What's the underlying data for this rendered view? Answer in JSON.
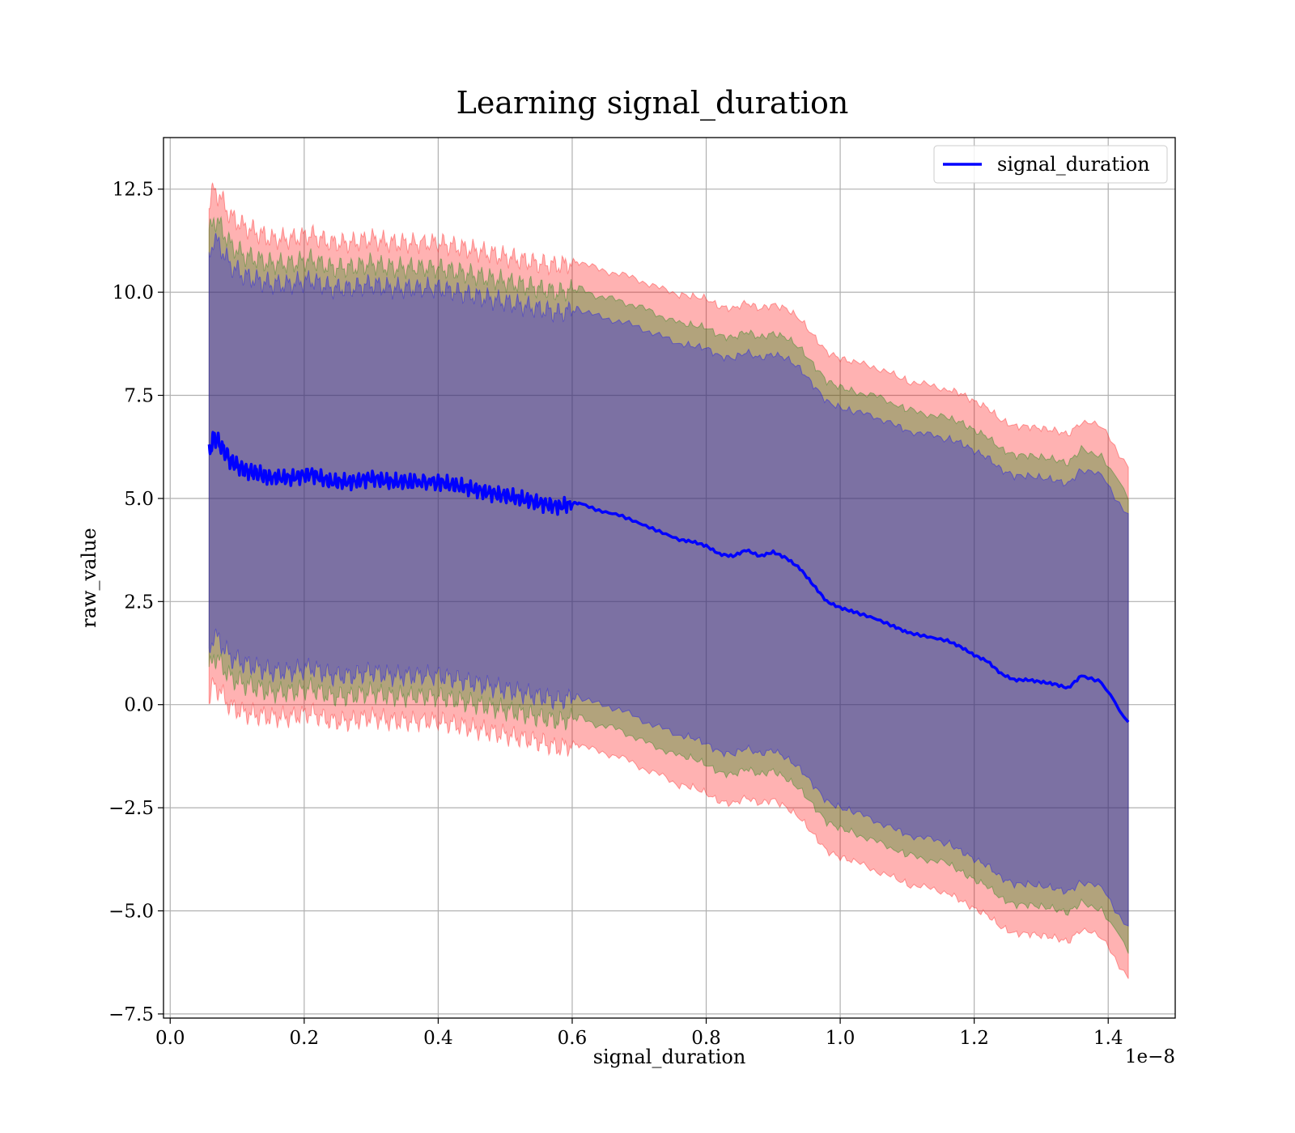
{
  "chart_data": {
    "type": "line",
    "title": "Learning signal_duration",
    "xlabel": "signal_duration",
    "ylabel": "raw_value",
    "x_offset_text": "1e−8",
    "xlim": [
      -0.01,
      1.5
    ],
    "ylim": [
      -7.6,
      13.75
    ],
    "x_ticks": [
      0.0,
      0.2,
      0.4,
      0.6,
      0.8,
      1.0,
      1.2,
      1.4
    ],
    "x_tick_labels": [
      "0.0",
      "0.2",
      "0.4",
      "0.6",
      "0.8",
      "1.0",
      "1.2",
      "1.4"
    ],
    "y_ticks": [
      -7.5,
      -5.0,
      -2.5,
      0.0,
      2.5,
      5.0,
      7.5,
      10.0,
      12.5
    ],
    "y_tick_labels": [
      "−7.5",
      "−5.0",
      "−2.5",
      "0.0",
      "2.5",
      "5.0",
      "7.5",
      "10.0",
      "12.5"
    ],
    "grid": true,
    "legend_position": "top-right",
    "series": [
      {
        "name": "signal_duration",
        "color": "#0000ff",
        "x": [
          0.058,
          0.065,
          0.075,
          0.09,
          0.11,
          0.13,
          0.15,
          0.18,
          0.21,
          0.24,
          0.27,
          0.3,
          0.33,
          0.36,
          0.4,
          0.43,
          0.46,
          0.49,
          0.52,
          0.55,
          0.58,
          0.61,
          0.64,
          0.67,
          0.7,
          0.73,
          0.76,
          0.78,
          0.8,
          0.82,
          0.84,
          0.86,
          0.88,
          0.9,
          0.92,
          0.94,
          0.96,
          0.98,
          1.0,
          1.02,
          1.05,
          1.08,
          1.1,
          1.13,
          1.16,
          1.18,
          1.2,
          1.22,
          1.24,
          1.26,
          1.28,
          1.3,
          1.32,
          1.34,
          1.36,
          1.39,
          1.43
        ],
        "y": [
          6.1,
          6.5,
          6.3,
          5.9,
          5.7,
          5.6,
          5.5,
          5.5,
          5.6,
          5.4,
          5.4,
          5.5,
          5.4,
          5.4,
          5.4,
          5.3,
          5.2,
          5.1,
          5.0,
          4.9,
          4.8,
          4.9,
          4.7,
          4.6,
          4.4,
          4.2,
          4.0,
          3.95,
          3.85,
          3.65,
          3.6,
          3.75,
          3.6,
          3.7,
          3.55,
          3.3,
          2.9,
          2.5,
          2.35,
          2.25,
          2.1,
          1.9,
          1.75,
          1.65,
          1.55,
          1.4,
          1.2,
          1.05,
          0.75,
          0.6,
          0.6,
          0.55,
          0.5,
          0.4,
          0.7,
          0.55,
          -0.45
        ]
      }
    ],
    "bands": [
      {
        "name": "outer",
        "color": "#ff0000",
        "opacity": 0.3,
        "width": [
          6.0,
          6.0,
          6.0,
          5.95,
          5.9,
          5.85,
          5.8,
          5.8,
          5.8,
          5.8,
          5.8,
          5.8,
          5.8,
          5.8,
          5.8,
          5.8,
          5.8,
          5.8,
          5.8,
          5.8,
          5.85,
          5.85,
          5.85,
          5.85,
          5.9,
          5.9,
          5.95,
          5.95,
          6.0,
          6.0,
          6.0,
          6.0,
          6.0,
          6.0,
          6.05,
          6.05,
          6.05,
          6.05,
          6.05,
          6.05,
          6.1,
          6.1,
          6.1,
          6.1,
          6.1,
          6.15,
          6.15,
          6.15,
          6.15,
          6.15,
          6.15,
          6.15,
          6.15,
          6.15,
          6.15,
          6.2,
          6.2
        ]
      },
      {
        "name": "middle",
        "color": "#008000",
        "opacity": 0.3,
        "width": [
          5.3,
          5.3,
          5.3,
          5.25,
          5.2,
          5.2,
          5.2,
          5.2,
          5.2,
          5.2,
          5.2,
          5.2,
          5.2,
          5.2,
          5.2,
          5.2,
          5.2,
          5.2,
          5.2,
          5.2,
          5.2,
          5.2,
          5.2,
          5.2,
          5.25,
          5.25,
          5.25,
          5.25,
          5.3,
          5.3,
          5.3,
          5.3,
          5.3,
          5.3,
          5.35,
          5.35,
          5.35,
          5.35,
          5.35,
          5.35,
          5.4,
          5.4,
          5.4,
          5.4,
          5.4,
          5.45,
          5.45,
          5.45,
          5.45,
          5.45,
          5.45,
          5.45,
          5.45,
          5.45,
          5.5,
          5.5,
          5.5
        ]
      },
      {
        "name": "inner",
        "color": "#0000ff",
        "opacity": 0.3,
        "width": [
          4.8,
          4.8,
          4.8,
          4.75,
          4.7,
          4.7,
          4.7,
          4.7,
          4.7,
          4.7,
          4.7,
          4.7,
          4.7,
          4.7,
          4.7,
          4.7,
          4.7,
          4.7,
          4.7,
          4.7,
          4.7,
          4.7,
          4.7,
          4.7,
          4.75,
          4.75,
          4.75,
          4.75,
          4.8,
          4.8,
          4.8,
          4.8,
          4.8,
          4.8,
          4.85,
          4.85,
          4.85,
          4.85,
          4.85,
          4.85,
          4.9,
          4.9,
          4.9,
          4.9,
          4.9,
          4.95,
          4.95,
          4.95,
          4.95,
          4.95,
          4.95,
          4.95,
          4.95,
          4.95,
          5.0,
          5.0,
          5.0
        ]
      }
    ]
  }
}
